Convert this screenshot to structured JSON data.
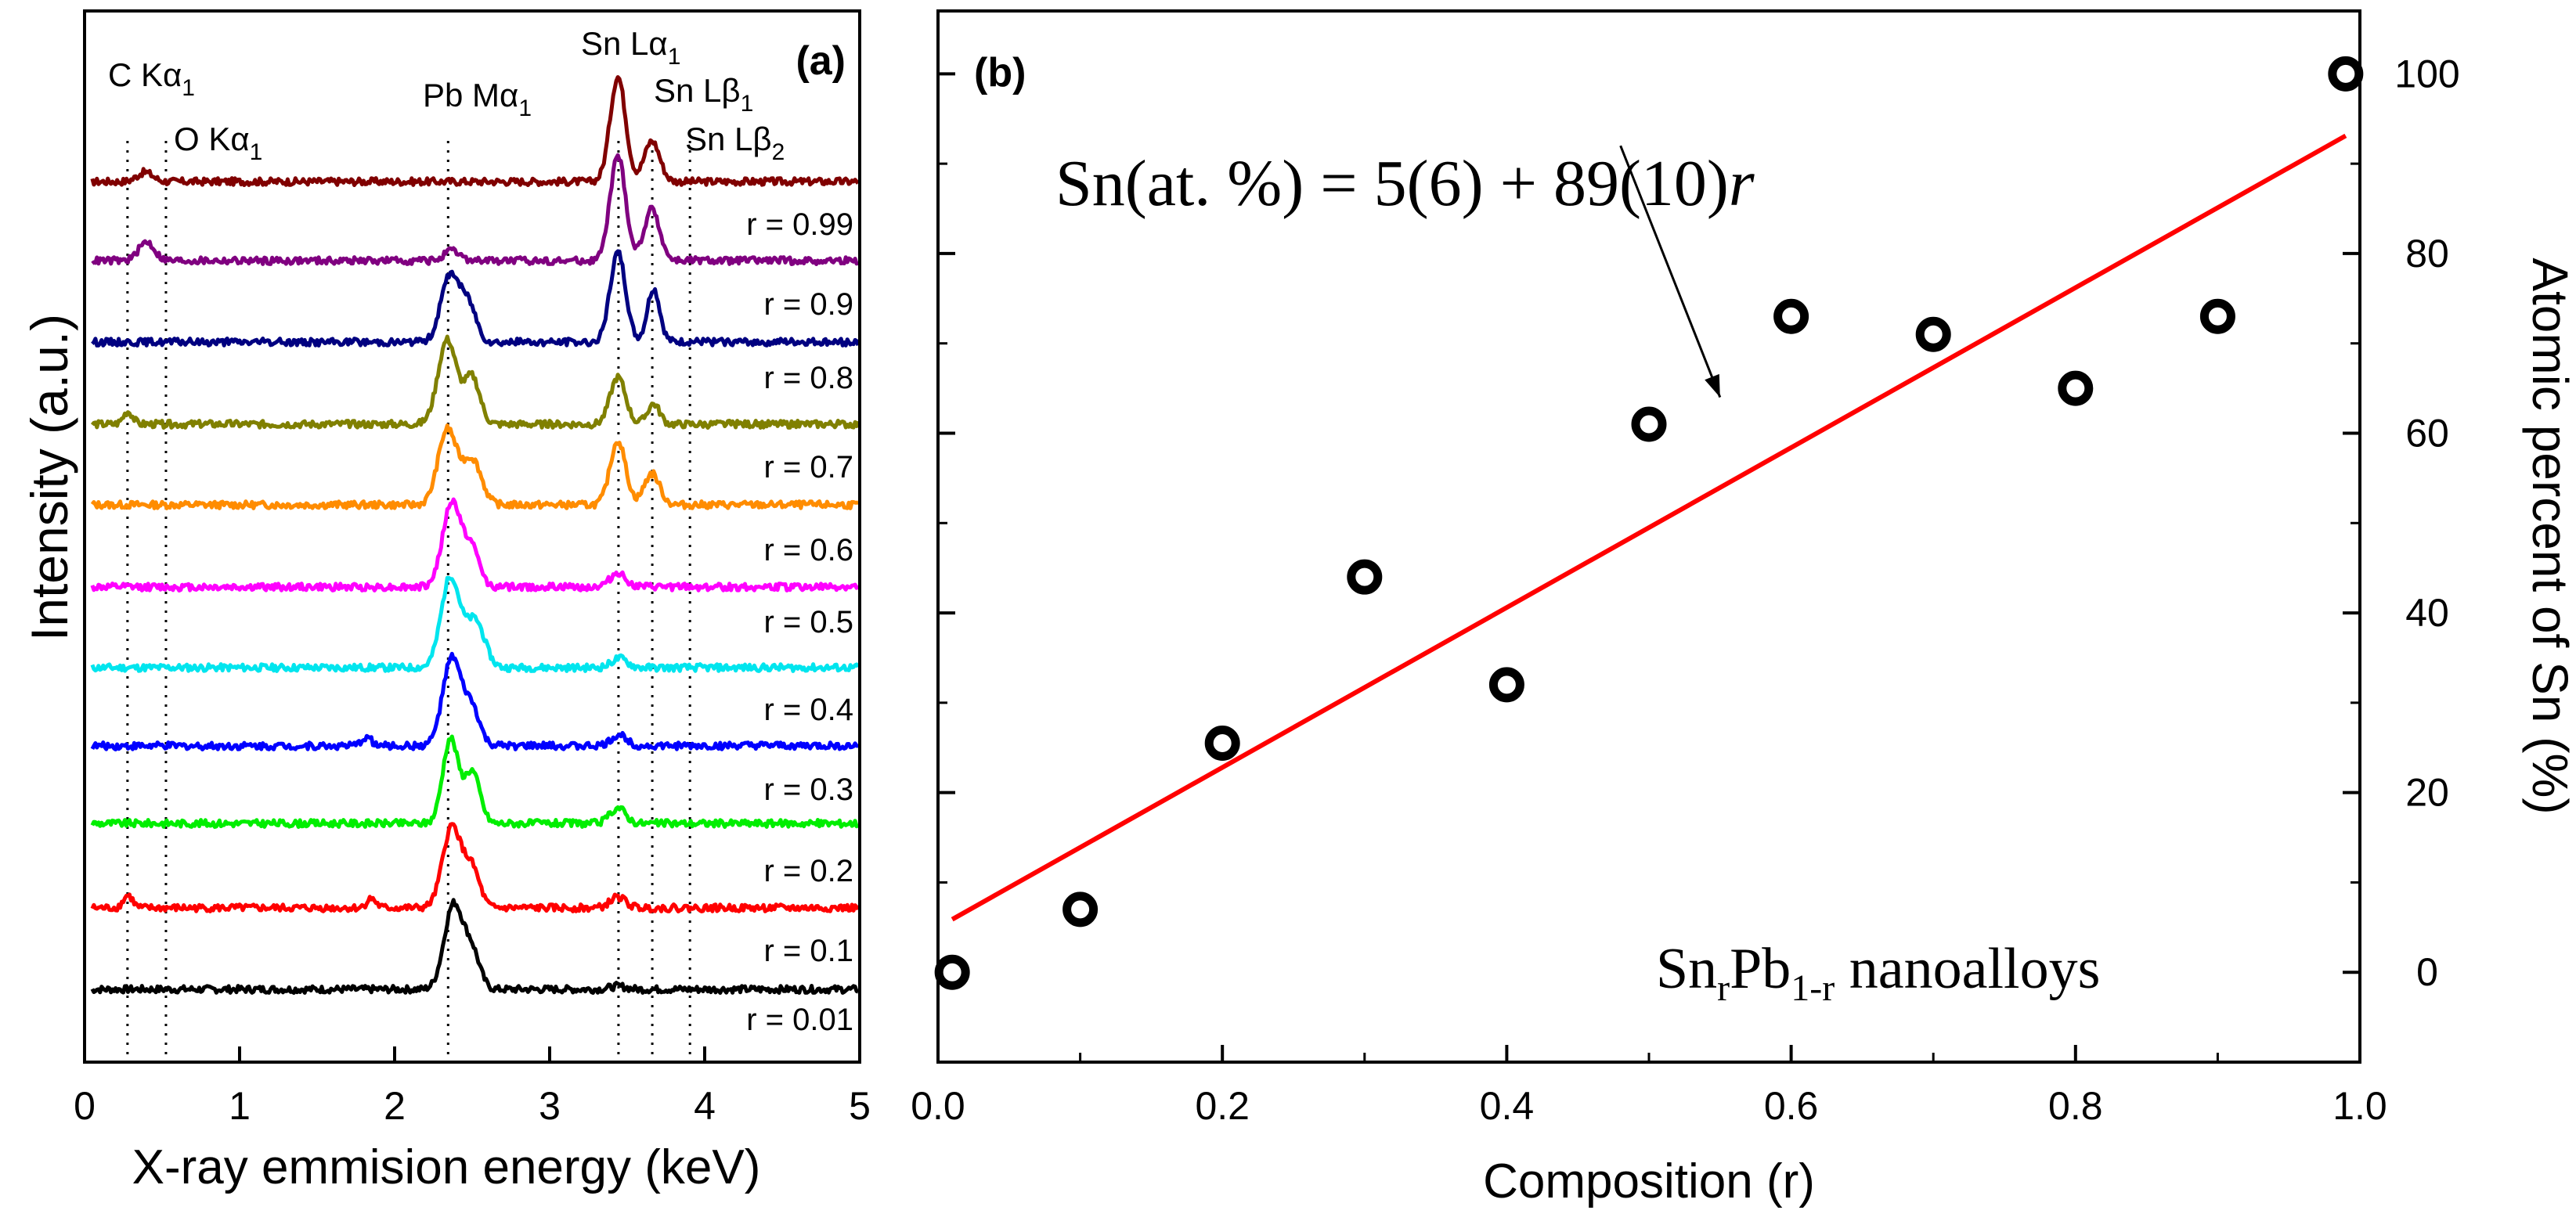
{
  "chart_data": [
    {
      "panel": "(a)",
      "type": "line",
      "xlabel": "X-ray emmision energy (keV)",
      "ylabel": "Intensity (a.u.)",
      "xlim": [
        0,
        5
      ],
      "xticks": [
        "0",
        "1",
        "2",
        "3",
        "4",
        "5"
      ],
      "y_ticks_labeled": false,
      "reference_lines": [
        {
          "label": "C Kα",
          "sub": "1",
          "energy": 0.277
        },
        {
          "label": "O Kα",
          "sub": "1",
          "energy": 0.525
        },
        {
          "label": "Pb Mα",
          "sub": "1",
          "energy": 2.345
        },
        {
          "label": "Sn Lα",
          "sub": "1",
          "energy": 3.444
        },
        {
          "label": "Sn Lβ",
          "sub": "1",
          "energy": 3.662
        },
        {
          "label": "Sn Lβ",
          "sub": "2",
          "energy": 3.905
        }
      ],
      "series": [
        {
          "name": "r = 0.01",
          "color": "#000000",
          "offset": 0,
          "peaks": [
            {
              "e": 2.38,
              "h": 5.4,
              "w": 0.06
            },
            {
              "e": 2.5,
              "h": 2.3,
              "w": 0.05
            },
            {
              "e": 3.44,
              "h": 0.2,
              "w": 0.05
            }
          ]
        },
        {
          "name": "r = 0.1",
          "color": "#ff0000",
          "offset": 1,
          "peaks": [
            {
              "e": 0.28,
              "h": 0.8,
              "w": 0.03
            },
            {
              "e": 1.85,
              "h": 0.6,
              "w": 0.03
            },
            {
              "e": 2.37,
              "h": 5.2,
              "w": 0.06
            },
            {
              "e": 2.5,
              "h": 2.4,
              "w": 0.05
            },
            {
              "e": 3.44,
              "h": 0.7,
              "w": 0.05
            }
          ]
        },
        {
          "name": "r = 0.2",
          "color": "#00ee00",
          "offset": 2,
          "peaks": [
            {
              "e": 2.36,
              "h": 5.4,
              "w": 0.05
            },
            {
              "e": 2.5,
              "h": 3.3,
              "w": 0.05
            },
            {
              "e": 3.44,
              "h": 1.0,
              "w": 0.05
            }
          ]
        },
        {
          "name": "r = 0.3",
          "color": "#0000ff",
          "offset": 3,
          "peaks": [
            {
              "e": 1.82,
              "h": 0.6,
              "w": 0.03
            },
            {
              "e": 2.37,
              "h": 5.6,
              "w": 0.06
            },
            {
              "e": 2.5,
              "h": 2.3,
              "w": 0.05
            },
            {
              "e": 3.45,
              "h": 0.7,
              "w": 0.05
            }
          ]
        },
        {
          "name": "r = 0.4",
          "color": "#00e5ee",
          "offset": 4,
          "peaks": [
            {
              "e": 2.36,
              "h": 5.8,
              "w": 0.06
            },
            {
              "e": 2.52,
              "h": 3.0,
              "w": 0.06
            },
            {
              "e": 3.45,
              "h": 0.6,
              "w": 0.05
            }
          ]
        },
        {
          "name": "r = 0.5",
          "color": "#ff00ff",
          "offset": 5,
          "peaks": [
            {
              "e": 2.37,
              "h": 5.4,
              "w": 0.06
            },
            {
              "e": 2.5,
              "h": 2.3,
              "w": 0.05
            },
            {
              "e": 3.44,
              "h": 0.9,
              "w": 0.05
            }
          ]
        },
        {
          "name": "r = 0.6",
          "color": "#ff8c00",
          "offset": 6,
          "peaks": [
            {
              "e": 2.34,
              "h": 4.8,
              "w": 0.06
            },
            {
              "e": 2.5,
              "h": 2.9,
              "w": 0.06
            },
            {
              "e": 3.44,
              "h": 4.1,
              "w": 0.05
            },
            {
              "e": 3.66,
              "h": 2.0,
              "w": 0.05
            }
          ]
        },
        {
          "name": "r = 0.7",
          "color": "#808000",
          "offset": 7,
          "peaks": [
            {
              "e": 0.28,
              "h": 0.8,
              "w": 0.03
            },
            {
              "e": 2.34,
              "h": 5.4,
              "w": 0.06
            },
            {
              "e": 2.5,
              "h": 3.0,
              "w": 0.05
            },
            {
              "e": 3.44,
              "h": 3.0,
              "w": 0.05
            },
            {
              "e": 3.67,
              "h": 1.3,
              "w": 0.04
            }
          ]
        },
        {
          "name": "r = 0.8",
          "color": "#000080",
          "offset": 8,
          "peaks": [
            {
              "e": 2.36,
              "h": 4.3,
              "w": 0.06
            },
            {
              "e": 2.48,
              "h": 2.2,
              "w": 0.05
            },
            {
              "e": 3.44,
              "h": 5.7,
              "w": 0.05
            },
            {
              "e": 3.67,
              "h": 3.4,
              "w": 0.04
            }
          ]
        },
        {
          "name": "r = 0.9",
          "color": "#800080",
          "offset": 9,
          "peaks": [
            {
              "e": 0.4,
              "h": 1.2,
              "w": 0.05
            },
            {
              "e": 2.37,
              "h": 0.6,
              "w": 0.05
            },
            {
              "e": 3.44,
              "h": 6.7,
              "w": 0.05
            },
            {
              "e": 3.66,
              "h": 3.3,
              "w": 0.05
            }
          ]
        },
        {
          "name": "r = 0.99",
          "color": "#800000",
          "offset": 10,
          "peaks": [
            {
              "e": 0.39,
              "h": 0.6,
              "w": 0.05
            },
            {
              "e": 3.44,
              "h": 6.7,
              "w": 0.05
            },
            {
              "e": 3.66,
              "h": 2.6,
              "w": 0.05
            }
          ]
        }
      ]
    },
    {
      "panel": "(b)",
      "type": "scatter",
      "xlabel": "Composition (r)",
      "ylabel": "Atomic percent of Sn (%)",
      "xlim": [
        0,
        1.0
      ],
      "ylim": [
        -10,
        107
      ],
      "xticks": [
        "0.0",
        "0.2",
        "0.4",
        "0.6",
        "0.8",
        "1.0"
      ],
      "xtick_values": [
        0,
        0.2,
        0.4,
        0.6,
        0.8,
        1.0
      ],
      "yticks": [
        "0",
        "20",
        "40",
        "60",
        "80",
        "100"
      ],
      "ytick_values": [
        0,
        20,
        40,
        60,
        80,
        100
      ],
      "x": [
        0.01,
        0.1,
        0.2,
        0.3,
        0.4,
        0.5,
        0.6,
        0.7,
        0.8,
        0.9,
        0.99
      ],
      "y": [
        0,
        7,
        25.5,
        44,
        32,
        61,
        73,
        71,
        65,
        73,
        100
      ],
      "fit": {
        "intercept": 5,
        "slope": 89,
        "x_range": [
          0.01,
          0.99
        ],
        "color": "#ff0000",
        "equation_lhs": "Sn(at. %) = 5(6) + 89(10)",
        "equation_var": "r"
      },
      "annotation_arrow": {
        "from": [
          0.48,
          92
        ],
        "to": [
          0.55,
          64
        ]
      },
      "legend_label": {
        "prefix": "Sn",
        "sub1": "r",
        "mid": "Pb",
        "sub2": "1-r",
        "suffix": " nanoalloys"
      }
    }
  ]
}
